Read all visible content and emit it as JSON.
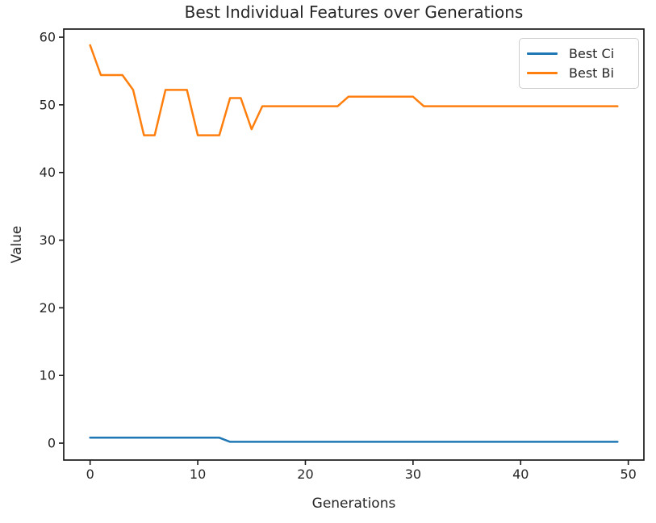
{
  "chart_data": {
    "type": "line",
    "title": "Best Individual Features over Generations",
    "xlabel": "Generations",
    "ylabel": "Value",
    "x": [
      0,
      1,
      2,
      3,
      4,
      5,
      6,
      7,
      8,
      9,
      10,
      11,
      12,
      13,
      14,
      15,
      16,
      17,
      18,
      19,
      20,
      21,
      22,
      23,
      24,
      25,
      26,
      27,
      28,
      29,
      30,
      31,
      32,
      33,
      34,
      35,
      36,
      37,
      38,
      39,
      40,
      41,
      42,
      43,
      44,
      45,
      46,
      47,
      48,
      49
    ],
    "series": [
      {
        "name": "Best Ci",
        "color": "#1f77b4",
        "values": [
          0.8,
          0.8,
          0.8,
          0.8,
          0.8,
          0.8,
          0.8,
          0.8,
          0.8,
          0.8,
          0.8,
          0.8,
          0.8,
          0.2,
          0.2,
          0.2,
          0.2,
          0.2,
          0.2,
          0.2,
          0.2,
          0.2,
          0.2,
          0.2,
          0.2,
          0.2,
          0.2,
          0.2,
          0.2,
          0.2,
          0.2,
          0.2,
          0.2,
          0.2,
          0.2,
          0.2,
          0.2,
          0.2,
          0.2,
          0.2,
          0.2,
          0.2,
          0.2,
          0.2,
          0.2,
          0.2,
          0.2,
          0.2,
          0.2,
          0.2
        ]
      },
      {
        "name": "Best Bi",
        "color": "#ff7f0e",
        "values": [
          58.8,
          54.4,
          54.4,
          54.4,
          52.2,
          45.5,
          45.5,
          52.2,
          52.2,
          52.2,
          45.5,
          45.5,
          45.5,
          51.0,
          51.0,
          46.4,
          49.8,
          49.8,
          49.8,
          49.8,
          49.8,
          49.8,
          49.8,
          49.8,
          51.2,
          51.2,
          51.2,
          51.2,
          51.2,
          51.2,
          51.2,
          49.8,
          49.8,
          49.8,
          49.8,
          49.8,
          49.8,
          49.8,
          49.8,
          49.8,
          49.8,
          49.8,
          49.8,
          49.8,
          49.8,
          49.8,
          49.8,
          49.8,
          49.8,
          49.8
        ]
      }
    ],
    "xticks": [
      0,
      10,
      20,
      30,
      40,
      50
    ],
    "yticks": [
      0,
      10,
      20,
      30,
      40,
      50,
      60
    ],
    "xlim": [
      -2.45,
      51.45
    ],
    "ylim": [
      -2.5,
      61.2
    ],
    "grid": false,
    "legend_position": "upper right",
    "axis_color": "#1a1a1a",
    "text_color": "#262626",
    "background": "#ffffff"
  }
}
